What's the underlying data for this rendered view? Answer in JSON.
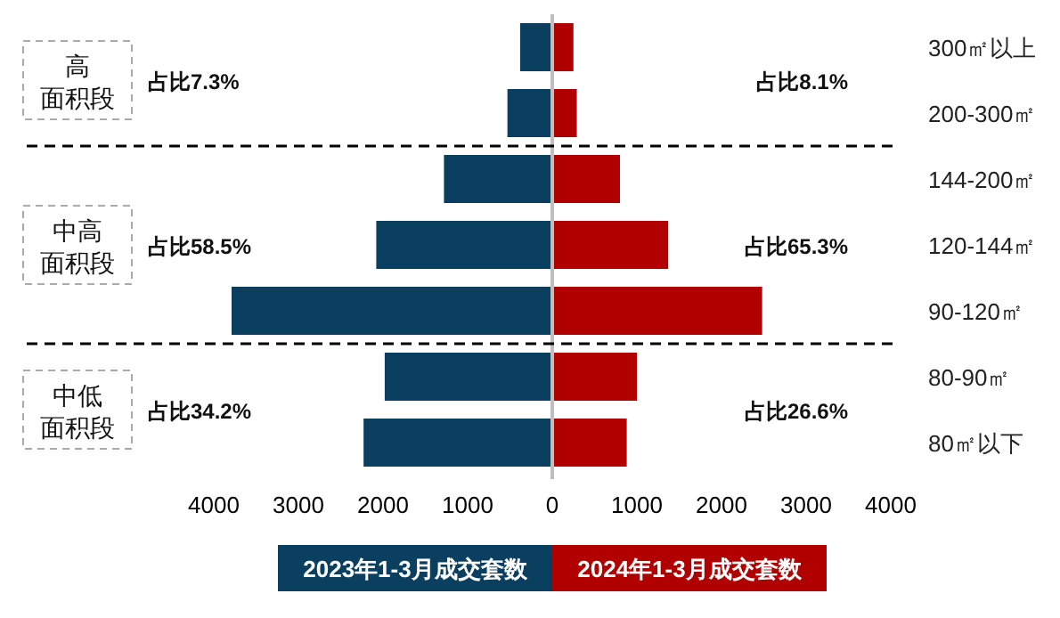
{
  "chart_data": {
    "type": "bar",
    "orientation": "horizontal",
    "stacked": true,
    "categories": [
      "300㎡以上",
      "200-300㎡",
      "144-200㎡",
      "120-144㎡",
      "90-120㎡",
      "80-90㎡",
      "80㎡以下"
    ],
    "series": [
      {
        "name": "2023年1-3月成交套数",
        "color": "#0b3f60",
        "values": [
          -380,
          -530,
          -1280,
          -2080,
          -3790,
          -1980,
          -2230
        ]
      },
      {
        "name": "2024年1-3月成交套数",
        "color": "#b00000",
        "values": [
          250,
          290,
          800,
          1370,
          2480,
          1000,
          880
        ]
      }
    ],
    "xlim": [
      -4000,
      4000
    ],
    "xticks": [
      {
        "value": -4000,
        "label": "4000"
      },
      {
        "value": -3000,
        "label": "3000"
      },
      {
        "value": -2000,
        "label": "2000"
      },
      {
        "value": -1000,
        "label": "1000"
      },
      0,
      1000,
      2000,
      3000,
      4000
    ],
    "ref_lines": [
      {
        "axis": "y",
        "value": "200-300㎡",
        "line_style": "dashed",
        "color": "#000000"
      },
      {
        "axis": "y",
        "value": "90-120㎡",
        "line_style": "dashed",
        "color": "#000000"
      }
    ],
    "annotations": [
      "高",
      "面积段",
      "占比7.3%",
      "占比8.1%",
      "中高",
      "面积段",
      "占比58.5%",
      "占比65.3%",
      "中低",
      "面积段",
      "占比34.2%",
      "占比26.6%"
    ],
    "legend": "bottom",
    "grid": false
  }
}
